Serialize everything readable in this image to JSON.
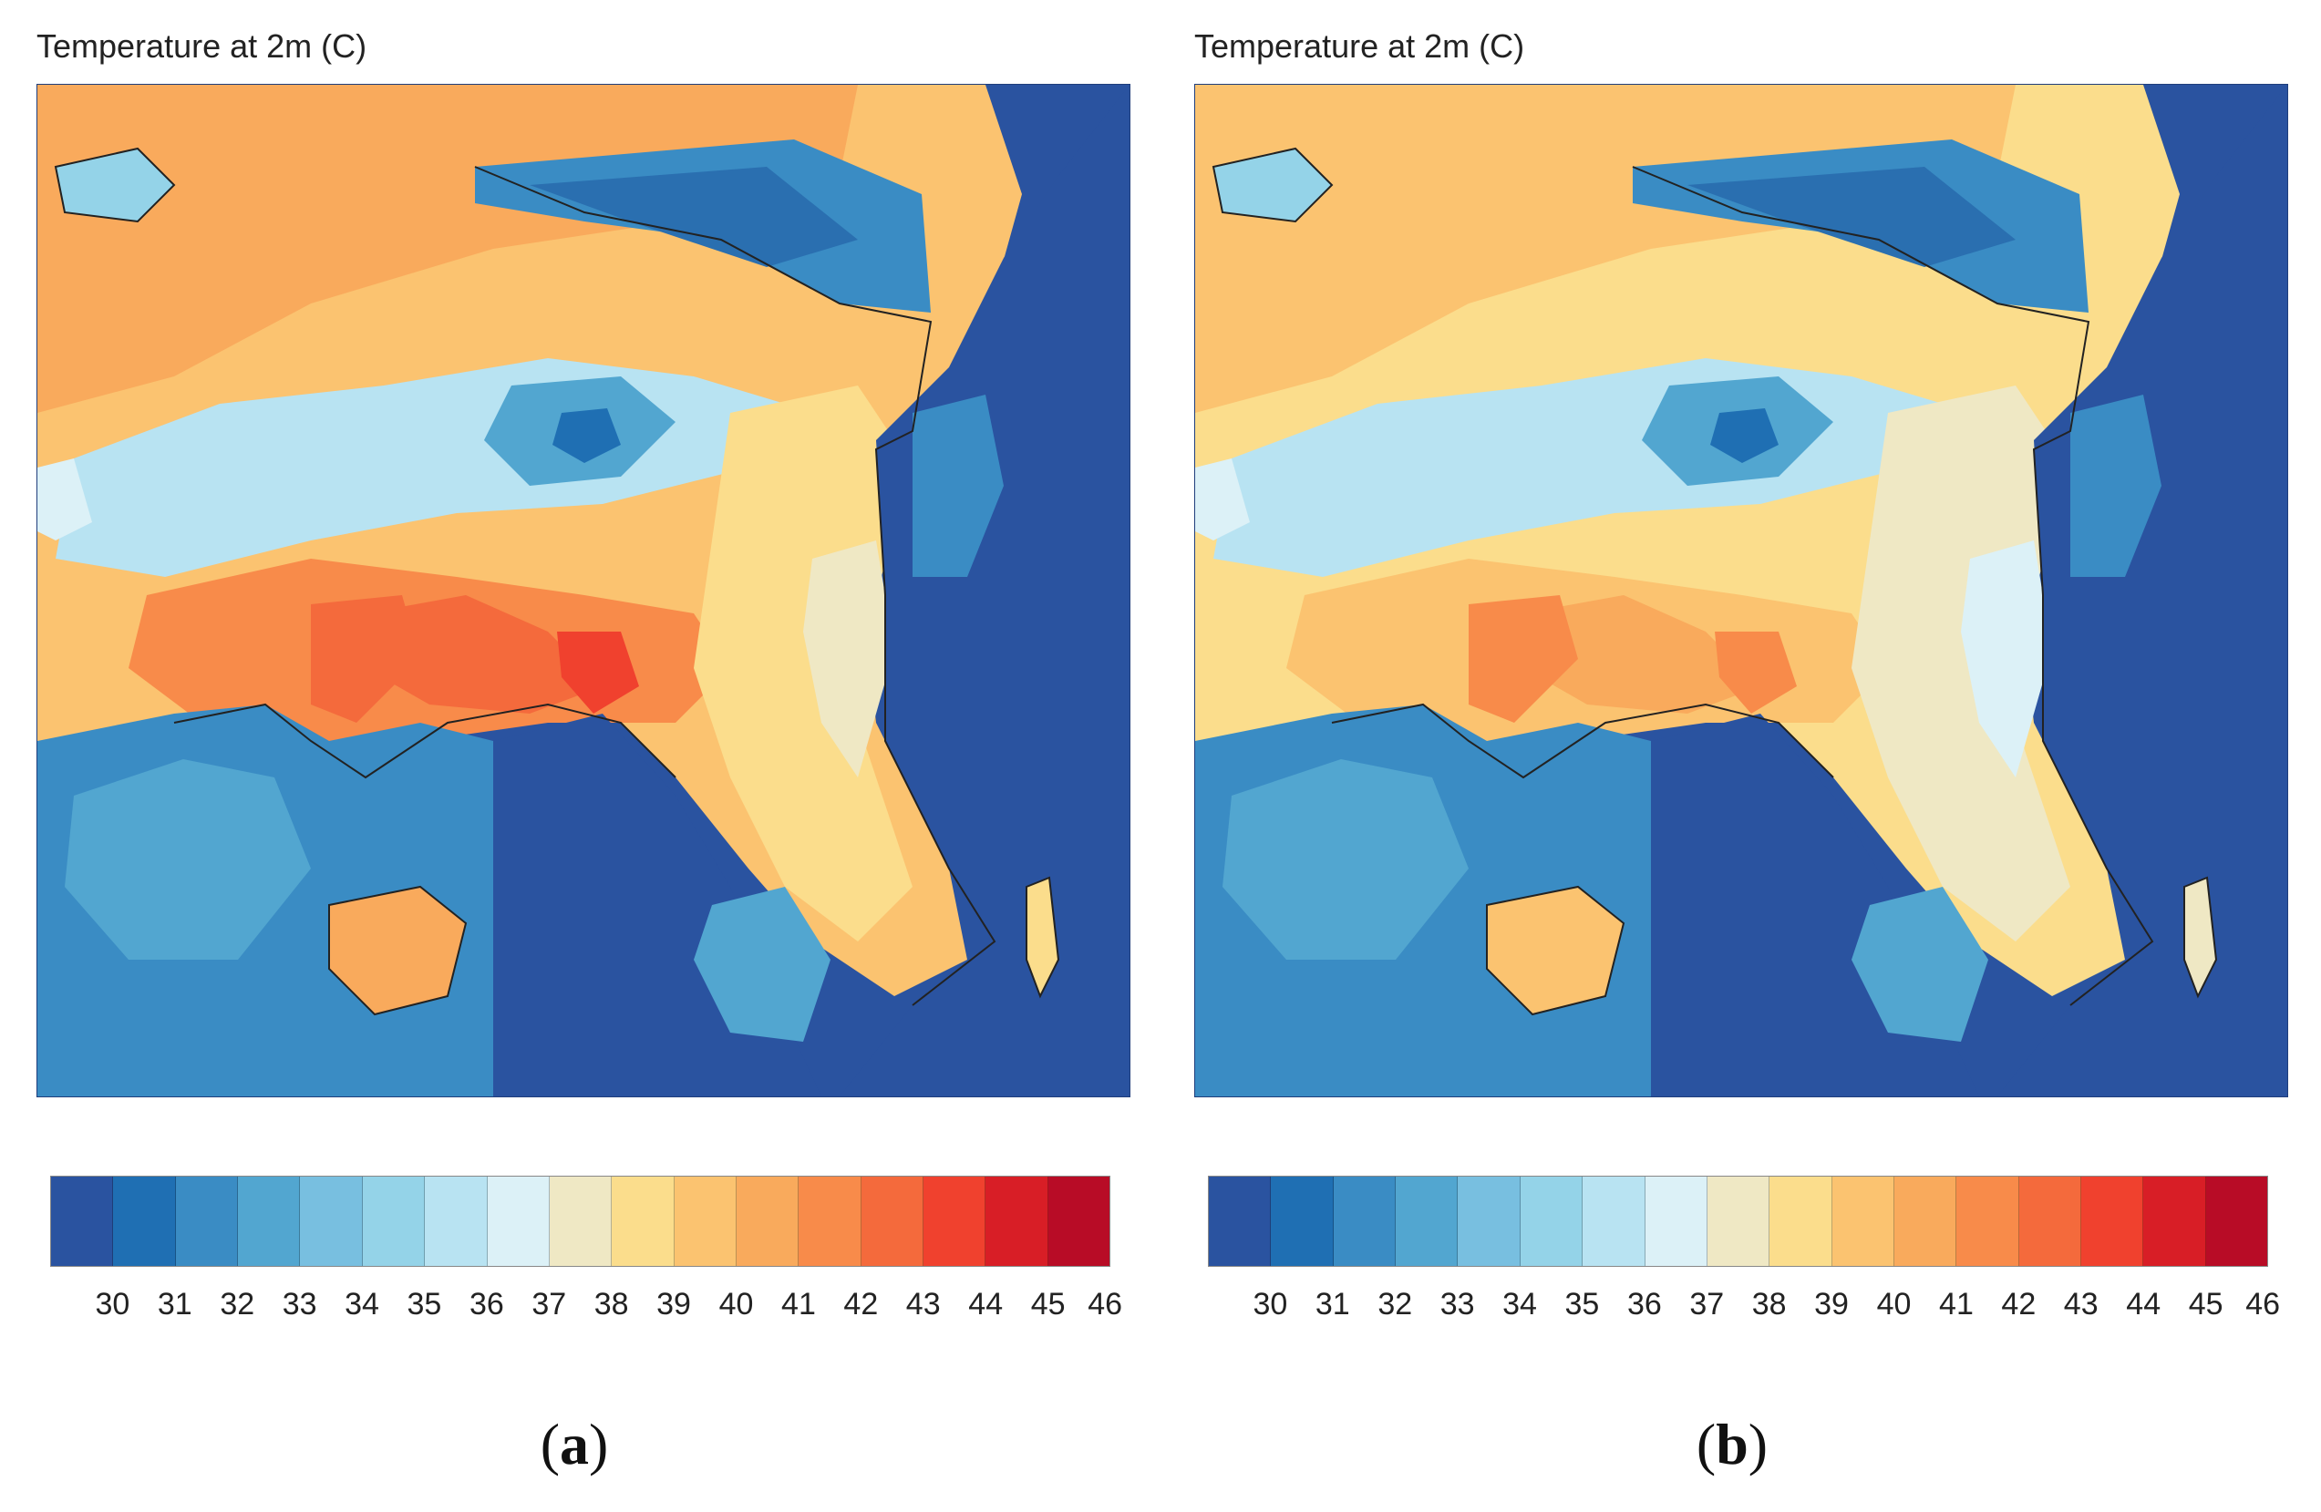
{
  "panels": [
    {
      "id": "a",
      "title": "Temperature at 2m (C)",
      "label_open": "(",
      "label_letter": "a",
      "label_close": ")"
    },
    {
      "id": "b",
      "title": "Temperature at 2m (C)",
      "label_open": "(",
      "label_letter": "b",
      "label_close": ")"
    }
  ],
  "colorbar": {
    "colors": [
      "#2a53a0",
      "#1f6fb3",
      "#3a8cc4",
      "#52a6d0",
      "#78bfe0",
      "#94d3e8",
      "#b8e3f2",
      "#dcf1f7",
      "#efe8c4",
      "#fbdd8c",
      "#fbc370",
      "#f9aa5c",
      "#f88b4a",
      "#f46a3c",
      "#f0412e",
      "#d81e26",
      "#b80c26"
    ],
    "ticks": [
      "30",
      "31",
      "32",
      "33",
      "34",
      "35",
      "36",
      "37",
      "38",
      "39",
      "40",
      "41",
      "42",
      "43",
      "44",
      "45",
      "46"
    ]
  }
}
